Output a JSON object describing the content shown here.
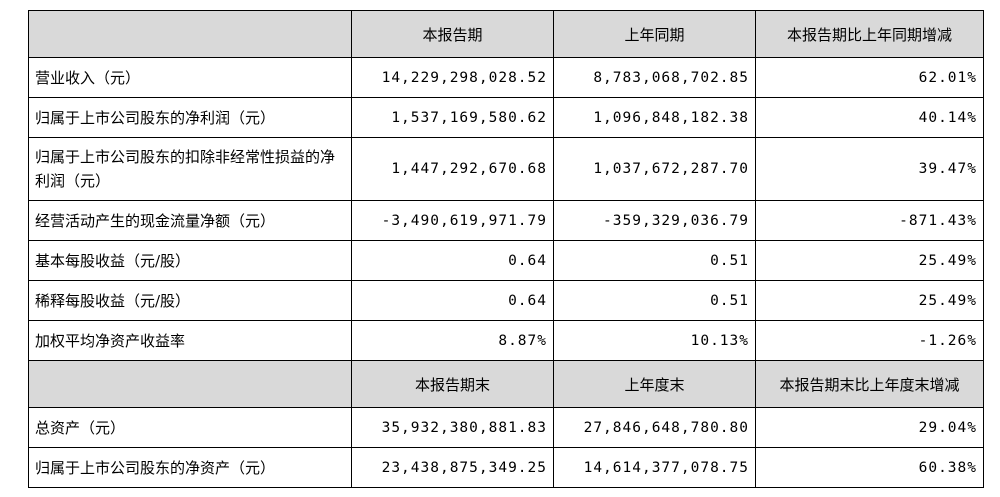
{
  "headers_period": [
    "本报告期",
    "上年同期",
    "本报告期比上年同期增减"
  ],
  "period_rows": [
    {
      "label": "营业收入（元）",
      "current": "14,229,298,028.52",
      "prior": "8,783,068,702.85",
      "change": "62.01%"
    },
    {
      "label": "归属于上市公司股东的净利润（元）",
      "current": "1,537,169,580.62",
      "prior": "1,096,848,182.38",
      "change": "40.14%"
    },
    {
      "label": "归属于上市公司股东的扣除非经常性损益的净利润（元）",
      "current": "1,447,292,670.68",
      "prior": "1,037,672,287.70",
      "change": "39.47%"
    },
    {
      "label": "经营活动产生的现金流量净额（元）",
      "current": "-3,490,619,971.79",
      "prior": "-359,329,036.79",
      "change": "-871.43%"
    },
    {
      "label": "基本每股收益（元/股）",
      "current": "0.64",
      "prior": "0.51",
      "change": "25.49%"
    },
    {
      "label": "稀释每股收益（元/股）",
      "current": "0.64",
      "prior": "0.51",
      "change": "25.49%"
    },
    {
      "label": "加权平均净资产收益率",
      "current": "8.87%",
      "prior": "10.13%",
      "change": "-1.26%"
    }
  ],
  "headers_end": [
    "本报告期末",
    "上年度末",
    "本报告期末比上年度末增减"
  ],
  "end_rows": [
    {
      "label": "总资产（元）",
      "current": "35,932,380,881.83",
      "prior": "27,846,648,780.80",
      "change": "29.04%"
    },
    {
      "label": "归属于上市公司股东的净资产（元）",
      "current": "23,438,875,349.25",
      "prior": "14,614,377,078.75",
      "change": "60.38%"
    }
  ]
}
